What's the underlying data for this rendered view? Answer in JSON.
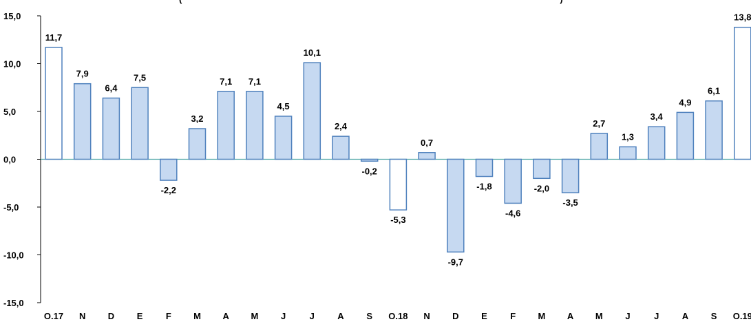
{
  "header": {
    "text": "(                                                                                                                                                        )"
  },
  "chart_data": {
    "type": "bar",
    "categories": [
      "O.17",
      "N",
      "D",
      "E",
      "F",
      "M",
      "A",
      "M",
      "J",
      "J",
      "A",
      "S",
      "O.18",
      "N",
      "D",
      "E",
      "F",
      "M",
      "A",
      "M",
      "J",
      "J",
      "A",
      "S",
      "O.19"
    ],
    "values": [
      11.7,
      7.9,
      6.4,
      7.5,
      -2.2,
      3.2,
      7.1,
      7.1,
      4.5,
      10.1,
      2.4,
      -0.2,
      -5.3,
      0.7,
      -9.7,
      -1.8,
      -4.6,
      -2.0,
      -3.5,
      2.7,
      1.3,
      3.4,
      4.9,
      6.1,
      13.8
    ],
    "value_labels": [
      "11,7",
      "7,9",
      "6,4",
      "7,5",
      "-2,2",
      "3,2",
      "7,1",
      "7,1",
      "4,5",
      "10,1",
      "2,4",
      "-0,2",
      "-5,3",
      "0,7",
      "-9,7",
      "-1,8",
      "-4,6",
      "-2,0",
      "-3,5",
      "2,7",
      "1,3",
      "3,4",
      "4,9",
      "6,1",
      "13,8"
    ],
    "highlight": [
      true,
      false,
      false,
      false,
      false,
      false,
      false,
      false,
      false,
      false,
      false,
      false,
      true,
      false,
      false,
      false,
      false,
      false,
      false,
      false,
      false,
      false,
      false,
      false,
      true
    ],
    "ylim": [
      -15,
      15
    ],
    "yticks": [
      15,
      10,
      5,
      0,
      -5,
      -10,
      -15
    ],
    "ytick_labels": [
      "15,0",
      "10,0",
      "5,0",
      "0,0",
      "-5,0",
      "-10,0",
      "-15,0"
    ],
    "grid": false,
    "colors": {
      "bar_fill": "#c6d9f1",
      "bar_stroke": "#4f81bd",
      "highlight_fill": "#ffffff",
      "zero_line": "#4aa3a3"
    }
  }
}
